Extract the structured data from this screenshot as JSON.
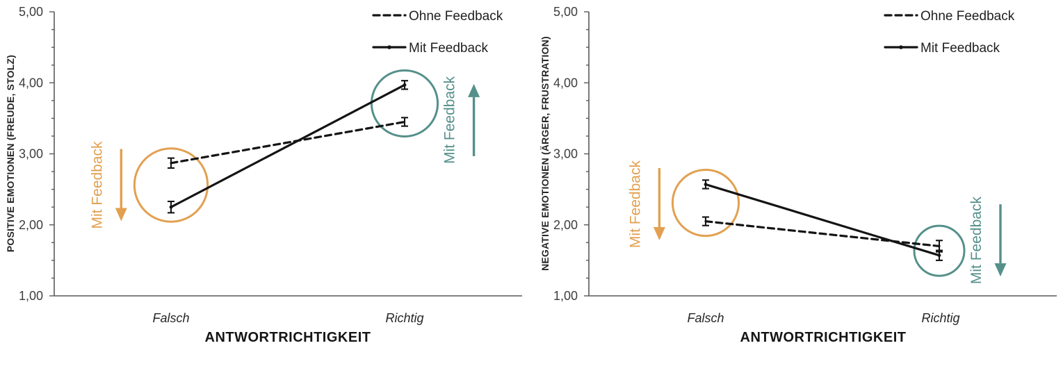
{
  "colors": {
    "orange": "#E2A050",
    "teal": "#55908A",
    "line": "#141414",
    "axis": "#595959"
  },
  "chart_data": [
    {
      "type": "line",
      "title": "",
      "ylabel": "POSITIVE EMOTIONEN (FREUDE, STOLZ)",
      "xlabel": "ANTWORTRICHTIGKEIT",
      "categories": [
        "Falsch",
        "Richtig"
      ],
      "ylim": [
        1.0,
        5.0
      ],
      "yticks": [
        "1,00",
        "2,00",
        "3,00",
        "4,00",
        "5,00"
      ],
      "minor_tick_step": 0.25,
      "grid": false,
      "legend_position": "top-right",
      "series": [
        {
          "name": "Ohne Feedback",
          "style": "dashed",
          "marker": "none",
          "values": [
            2.87,
            3.45
          ],
          "errors": [
            0.07,
            0.06
          ]
        },
        {
          "name": "Mit Feedback",
          "style": "solid",
          "marker": "dot",
          "values": [
            2.25,
            3.97
          ],
          "errors": [
            0.08,
            0.06
          ]
        }
      ],
      "annotations": [
        {
          "label": "Mit Feedback",
          "color": "orange",
          "category_index": 0,
          "arrow_direction": "down",
          "side": "left",
          "dy": 0
        },
        {
          "label": "Mit Feedback",
          "color": "teal",
          "category_index": 1,
          "arrow_direction": "up",
          "side": "right",
          "dy": 24
        }
      ]
    },
    {
      "type": "line",
      "title": "",
      "ylabel": "NEGATIVE EMOTIONEN (ÄRGER, FRUSTRATION)",
      "xlabel": "ANTWORTRICHTIGKEIT",
      "categories": [
        "Falsch",
        "Richtig"
      ],
      "ylim": [
        1.0,
        5.0
      ],
      "yticks": [
        "1,00",
        "2,00",
        "3,00",
        "4,00",
        "5,00"
      ],
      "minor_tick_step": 0.25,
      "grid": false,
      "legend_position": "top-right",
      "series": [
        {
          "name": "Ohne Feedback",
          "style": "dashed",
          "marker": "none",
          "values": [
            2.05,
            1.7
          ],
          "errors": [
            0.06,
            0.08
          ]
        },
        {
          "name": "Mit Feedback",
          "style": "solid",
          "marker": "dot",
          "values": [
            2.57,
            1.57
          ],
          "errors": [
            0.06,
            0.07
          ]
        }
      ],
      "annotations": [
        {
          "label": "Mit Feedback",
          "color": "orange",
          "category_index": 0,
          "arrow_direction": "down",
          "side": "left",
          "dy": 2
        },
        {
          "label": "Mit Feedback",
          "color": "teal",
          "category_index": 1,
          "arrow_direction": "down",
          "side": "right",
          "dy": -15
        }
      ]
    }
  ]
}
